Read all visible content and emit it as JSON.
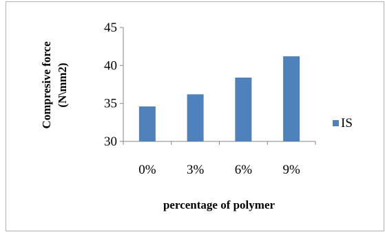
{
  "chart_data": {
    "type": "bar",
    "categories": [
      "0%",
      "3%",
      "6%",
      "9%"
    ],
    "series": [
      {
        "name": "IS",
        "values": [
          34.6,
          36.2,
          38.4,
          41.2
        ],
        "color": "#4f81bd"
      }
    ],
    "ylabel_line1": "Compresive force",
    "ylabel_line2": "(N\\mm2)",
    "xlabel": "percentage of polymer",
    "ylim": [
      30,
      45
    ],
    "yticks": [
      30,
      35,
      40,
      45
    ],
    "grid": false,
    "legend": "right"
  }
}
